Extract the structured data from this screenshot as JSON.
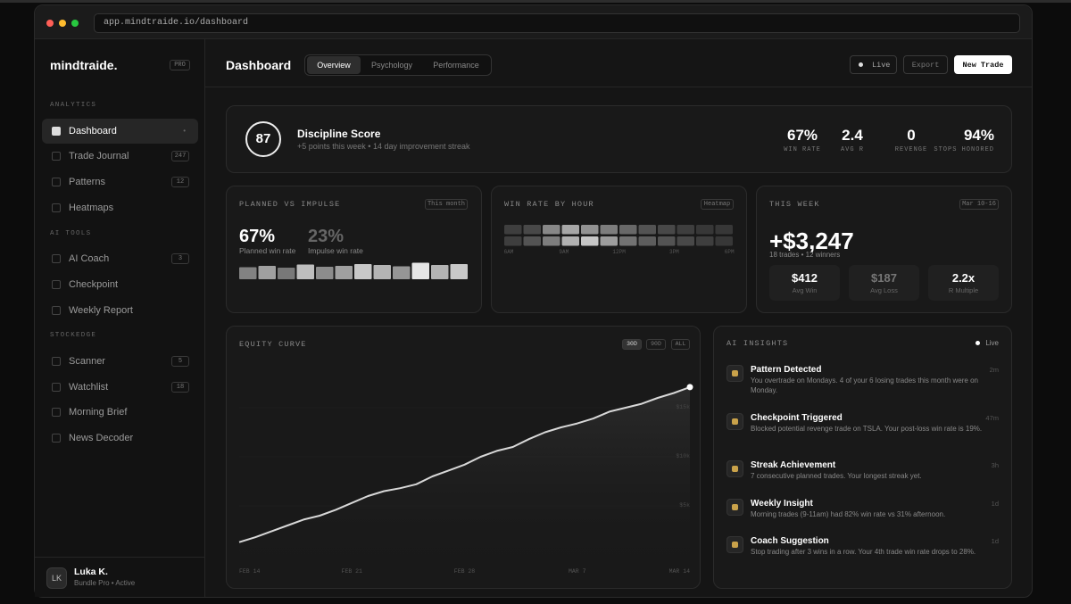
{
  "browser": {
    "url": "app.mindtraide.io/dashboard"
  },
  "sidebar": {
    "logo": "mindtraide.",
    "badge": "PRO",
    "sections": [
      {
        "title": "ANALYTICS",
        "items": [
          {
            "label": "Dashboard",
            "badge": "•"
          },
          {
            "label": "Trade Journal",
            "badge": "247"
          },
          {
            "label": "Patterns",
            "badge": "12"
          },
          {
            "label": "Heatmaps"
          }
        ]
      },
      {
        "title": "AI TOOLS",
        "items": [
          {
            "label": "AI Coach",
            "badge": "3"
          },
          {
            "label": "Checkpoint"
          },
          {
            "label": "Weekly Report"
          }
        ]
      },
      {
        "title": "STOCKEDGE",
        "items": [
          {
            "label": "Scanner",
            "badge": "5"
          },
          {
            "label": "Watchlist",
            "badge": "18"
          },
          {
            "label": "Morning Brief"
          },
          {
            "label": "News Decoder"
          }
        ]
      }
    ]
  },
  "user": {
    "initials": "LK",
    "name": "Luka K.",
    "plan": "Bundle Pro • Active"
  },
  "header": {
    "title": "Dashboard",
    "tabs": [
      "Overview",
      "Psychology",
      "Performance"
    ],
    "live": "Live",
    "export": "Export",
    "new_trade": "New Trade"
  },
  "discipline": {
    "score": "87",
    "title": "Discipline Score",
    "subtitle": "+5 points this week • 14 day improvement streak",
    "stats": [
      {
        "value": "67%",
        "label": "WIN RATE"
      },
      {
        "value": "2.4",
        "label": "AVG R"
      },
      {
        "value": "0",
        "label": "REVENGE"
      },
      {
        "value": "94%",
        "label": "STOPS HONORED"
      }
    ]
  },
  "planned": {
    "title": "PLANNED VS IMPULSE",
    "badge": "This month",
    "planned_value": "67%",
    "planned_label": "Planned win rate",
    "impulse_value": "23%",
    "impulse_label": "Impulse win rate",
    "bars": [
      0.45,
      0.6,
      0.4,
      0.75,
      0.5,
      0.6,
      0.8,
      0.7,
      0.55,
      0.95,
      0.7,
      0.8
    ]
  },
  "heatmap": {
    "title": "WIN RATE BY HOUR",
    "badge": "Heatmap",
    "rows": [
      [
        0.15,
        0.2,
        0.5,
        0.65,
        0.55,
        0.45,
        0.35,
        0.25,
        0.2,
        0.15,
        0.12,
        0.12
      ],
      [
        0.15,
        0.25,
        0.45,
        0.7,
        0.8,
        0.6,
        0.4,
        0.3,
        0.25,
        0.2,
        0.15,
        0.12
      ]
    ],
    "axis": [
      "6AM",
      "9AM",
      "12PM",
      "3PM",
      "6PM"
    ]
  },
  "week": {
    "title": "THIS WEEK",
    "badge": "Mar 10-16",
    "total": "+$3,247",
    "detail": "18 trades • 12 winners",
    "stats": [
      {
        "value": "$412",
        "label": "Avg Win"
      },
      {
        "value": "$187",
        "label": "Avg Loss"
      },
      {
        "value": "2.2x",
        "label": "R Multiple"
      }
    ]
  },
  "equity": {
    "title": "EQUITY CURVE",
    "ranges": [
      "30D",
      "90D",
      "ALL"
    ],
    "values": [
      1.3,
      1.8,
      2.4,
      3.0,
      3.6,
      4.0,
      4.6,
      5.3,
      6.0,
      6.5,
      6.8,
      7.2,
      8.0,
      8.6,
      9.2,
      10.0,
      10.6,
      11.0,
      11.8,
      12.5,
      13.0,
      13.4,
      13.9,
      14.6,
      15.0,
      15.4,
      16.0,
      16.5,
      17.1
    ],
    "ylim": [
      0,
      18
    ],
    "yticks": [
      {
        "value": 15,
        "label": "$15k"
      },
      {
        "value": 10,
        "label": "$10k"
      },
      {
        "value": 5,
        "label": "$5k"
      }
    ],
    "xticks": [
      {
        "value": 0,
        "label": "FEB 14"
      },
      {
        "value": 7,
        "label": "FEB 21"
      },
      {
        "value": 14,
        "label": "FEB 28"
      },
      {
        "value": 21,
        "label": "MAR 7"
      },
      {
        "value": 28,
        "label": "MAR 14"
      }
    ]
  },
  "insights": {
    "title": "AI INSIGHTS",
    "status": "Live",
    "items": [
      {
        "title": "Pattern Detected",
        "text": "You overtrade on Mondays. 4 of your 6 losing trades this month were on Monday.",
        "time": "2m"
      },
      {
        "title": "Checkpoint Triggered",
        "text": "Blocked potential revenge trade on TSLA. Your post-loss win rate is 19%.",
        "time": "47m"
      },
      {
        "title": "Streak Achievement",
        "text": "7 consecutive planned trades. Your longest streak yet.",
        "time": "3h"
      },
      {
        "title": "Weekly Insight",
        "text": "Morning trades (9-11am) had 82% win rate vs 31% afternoon.",
        "time": "1d"
      },
      {
        "title": "Coach Suggestion",
        "text": "Stop trading after 3 wins in a row. Your 4th trade win rate drops to 28%.",
        "time": "1d"
      }
    ]
  }
}
